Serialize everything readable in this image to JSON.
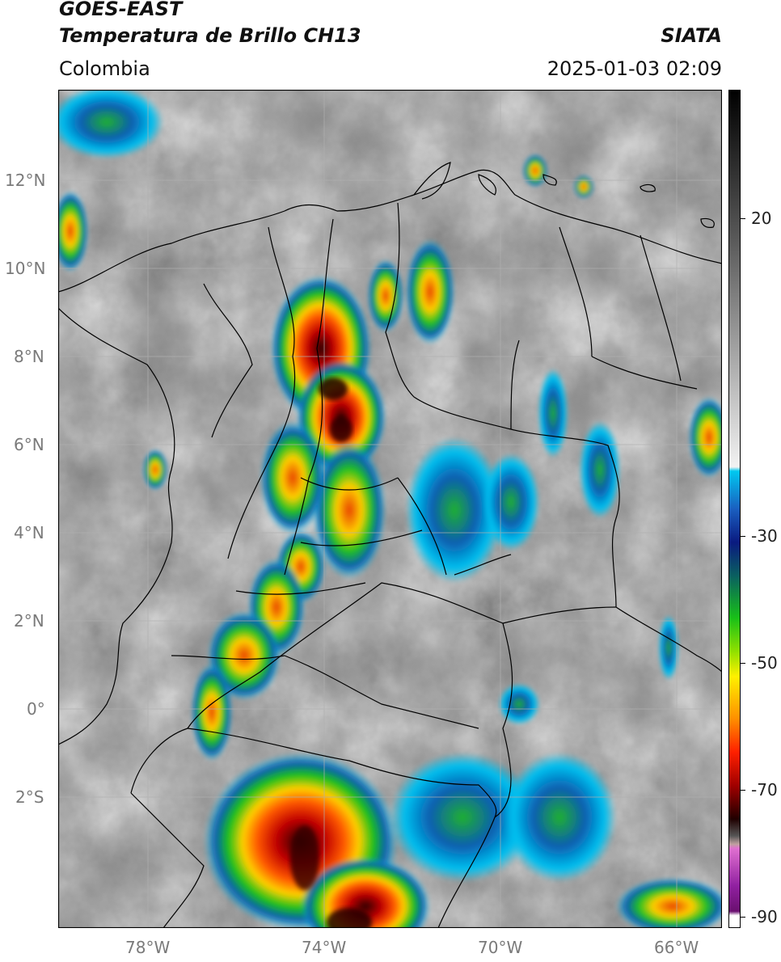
{
  "header": {
    "satellite": "GOES-EAST",
    "product": "Temperatura de Brillo CH13",
    "region": "Colombia",
    "agency": "SIATA",
    "datetime": "2025-01-03 02:09"
  },
  "map": {
    "lat_ticks": [
      "12°N",
      "10°N",
      "8°N",
      "6°N",
      "4°N",
      "2°N",
      "0°",
      "2°S"
    ],
    "lon_ticks": [
      "78°W",
      "74°W",
      "70°W",
      "66°W"
    ],
    "extent": {
      "lon_min": -80.0,
      "lon_max": -65.0,
      "lat_min": -5.0,
      "lat_max": 14.0
    }
  },
  "colorbar": {
    "ticks": [
      "20",
      "-30",
      "-50",
      "-70",
      "-90"
    ],
    "unit_range": [
      -92,
      35
    ]
  }
}
